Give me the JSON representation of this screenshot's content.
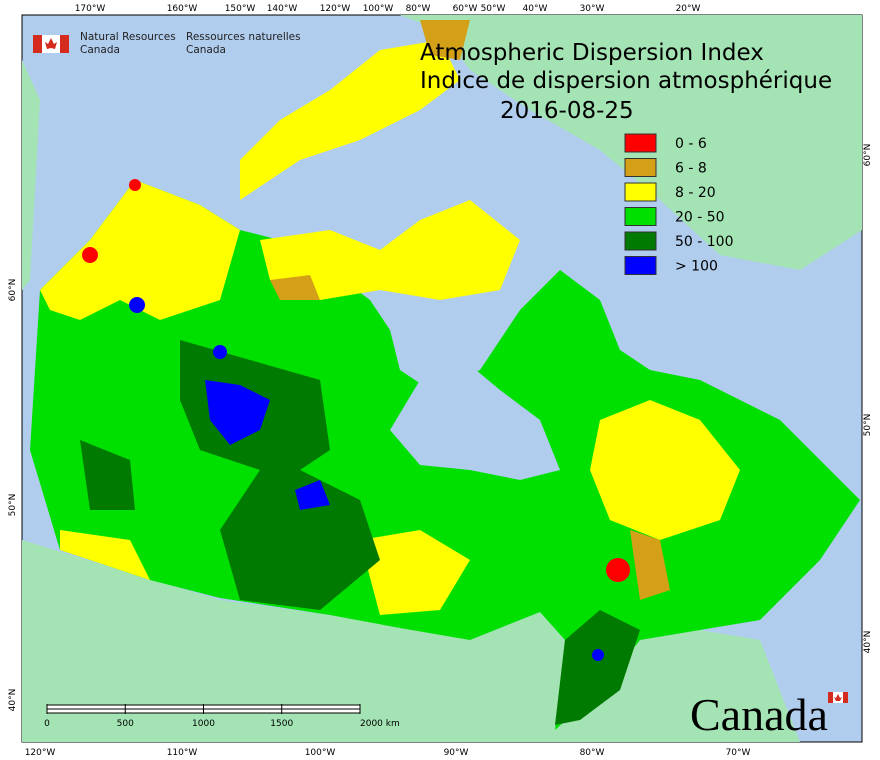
{
  "header": {
    "org_en": [
      "Natural Resources",
      "Canada"
    ],
    "org_fr": [
      "Ressources naturelles",
      "Canada"
    ]
  },
  "title": {
    "line1": "Atmospheric Dispersion Index",
    "line2": "Indice de dispersion atmosphérique",
    "date": "2016-08-25"
  },
  "legend": {
    "items": [
      {
        "label": "0 - 6",
        "color": "#ff0000"
      },
      {
        "label": "6 - 8",
        "color": "#d4a017"
      },
      {
        "label": "8 - 20",
        "color": "#ffff00"
      },
      {
        "label": "20 - 50",
        "color": "#00e000"
      },
      {
        "label": "50 - 100",
        "color": "#007a00"
      },
      {
        "label": "> 100",
        "color": "#0000ff"
      }
    ]
  },
  "graticule": {
    "top": [
      "170°W",
      "160°W",
      "150°W",
      "140°W",
      "120°W",
      "100°W",
      "80°W",
      "60°W",
      "50°W",
      "40°W",
      "30°W",
      "20°W"
    ],
    "bottom": [
      "120°W",
      "110°W",
      "100°W",
      "90°W",
      "80°W",
      "70°W"
    ],
    "left": [
      "60°N",
      "50°N",
      "40°N"
    ],
    "right": [
      "60°N",
      "50°N",
      "40°N"
    ]
  },
  "scale_bar": {
    "ticks": [
      0,
      500,
      1000,
      1500,
      {
        "value": 2000,
        "label": "2000 km"
      }
    ]
  },
  "wordmark": "Canada"
}
